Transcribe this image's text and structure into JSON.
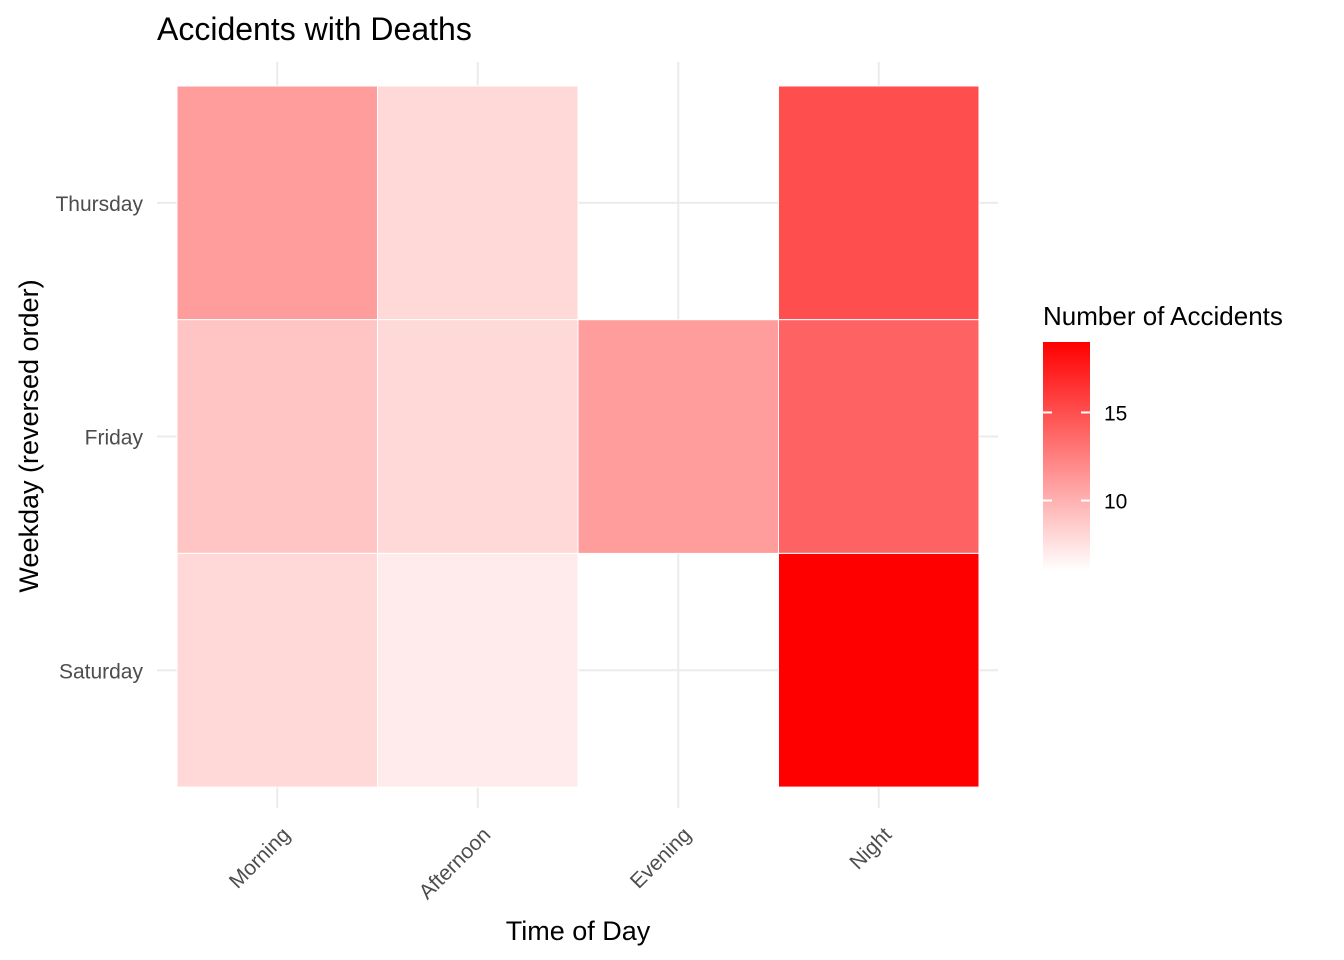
{
  "chart_data": {
    "type": "heatmap",
    "title": "Accidents with Deaths",
    "xlabel": "Time of Day",
    "ylabel": "Weekday (reversed order)",
    "x_categories": [
      "Morning",
      "Afternoon",
      "Evening",
      "Night"
    ],
    "y_categories": [
      "Thursday",
      "Friday",
      "Saturday"
    ],
    "cells": [
      {
        "x": "Morning",
        "y": "Thursday",
        "value": 11
      },
      {
        "x": "Afternoon",
        "y": "Thursday",
        "value": 8
      },
      {
        "x": "Night",
        "y": "Thursday",
        "value": 15
      },
      {
        "x": "Morning",
        "y": "Friday",
        "value": 9
      },
      {
        "x": "Afternoon",
        "y": "Friday",
        "value": 8
      },
      {
        "x": "Evening",
        "y": "Friday",
        "value": 11
      },
      {
        "x": "Night",
        "y": "Friday",
        "value": 14
      },
      {
        "x": "Morning",
        "y": "Saturday",
        "value": 8
      },
      {
        "x": "Afternoon",
        "y": "Saturday",
        "value": 7
      },
      {
        "x": "Night",
        "y": "Saturday",
        "value": 19
      }
    ],
    "grid": true,
    "legend": {
      "title": "Number of Accidents",
      "position": "right",
      "min": 6,
      "max": 19,
      "ticks": [
        10,
        15
      ],
      "low_color": "#ffffff",
      "high_color": "#ff0000"
    }
  }
}
